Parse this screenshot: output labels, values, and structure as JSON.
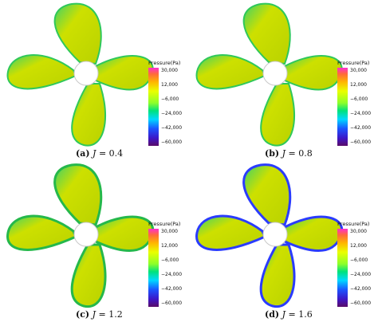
{
  "figure": {
    "panels": [
      {
        "tag": "(a)",
        "param": "J",
        "value": "= 0.4",
        "outline": "blue-free"
      },
      {
        "tag": "(b)",
        "param": "J",
        "value": "= 0.8",
        "outline": "blue-free"
      },
      {
        "tag": "(c)",
        "param": "J",
        "value": "= 1.2",
        "outline": "green-edges"
      },
      {
        "tag": "(d)",
        "param": "J",
        "value": "= 1.6",
        "outline": "blue-edges"
      }
    ],
    "colorbar": {
      "title": "Pressure(Pa)",
      "ticks": [
        "30,000",
        "12,000",
        "−6,000",
        "−24,000",
        "−42,000",
        "−60,000"
      ]
    },
    "colors": {
      "yellow": "#d9d400",
      "green": "#2fc85a",
      "blue": "#2a3cff",
      "white": "#ffffff"
    }
  }
}
